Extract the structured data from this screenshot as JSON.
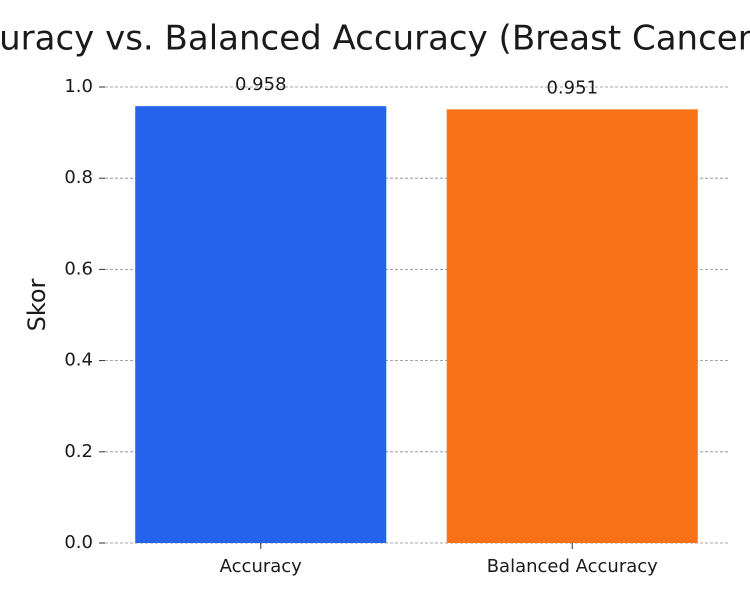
{
  "chart_data": {
    "type": "bar",
    "title": "Accuracy vs. Balanced Accuracy (Breast Cancer)",
    "ylabel": "Skor",
    "categories": [
      "Accuracy",
      "Balanced Accuracy"
    ],
    "values": [
      0.958,
      0.951
    ],
    "colors": [
      "#2563eb",
      "#f97316"
    ],
    "ylim": [
      0,
      1.0
    ],
    "yticks": [
      {
        "value": 0,
        "label": "0.0"
      },
      0.2,
      0.4,
      0.6,
      0.8,
      {
        "value": 1,
        "label": "1.0"
      }
    ],
    "grid": true
  }
}
